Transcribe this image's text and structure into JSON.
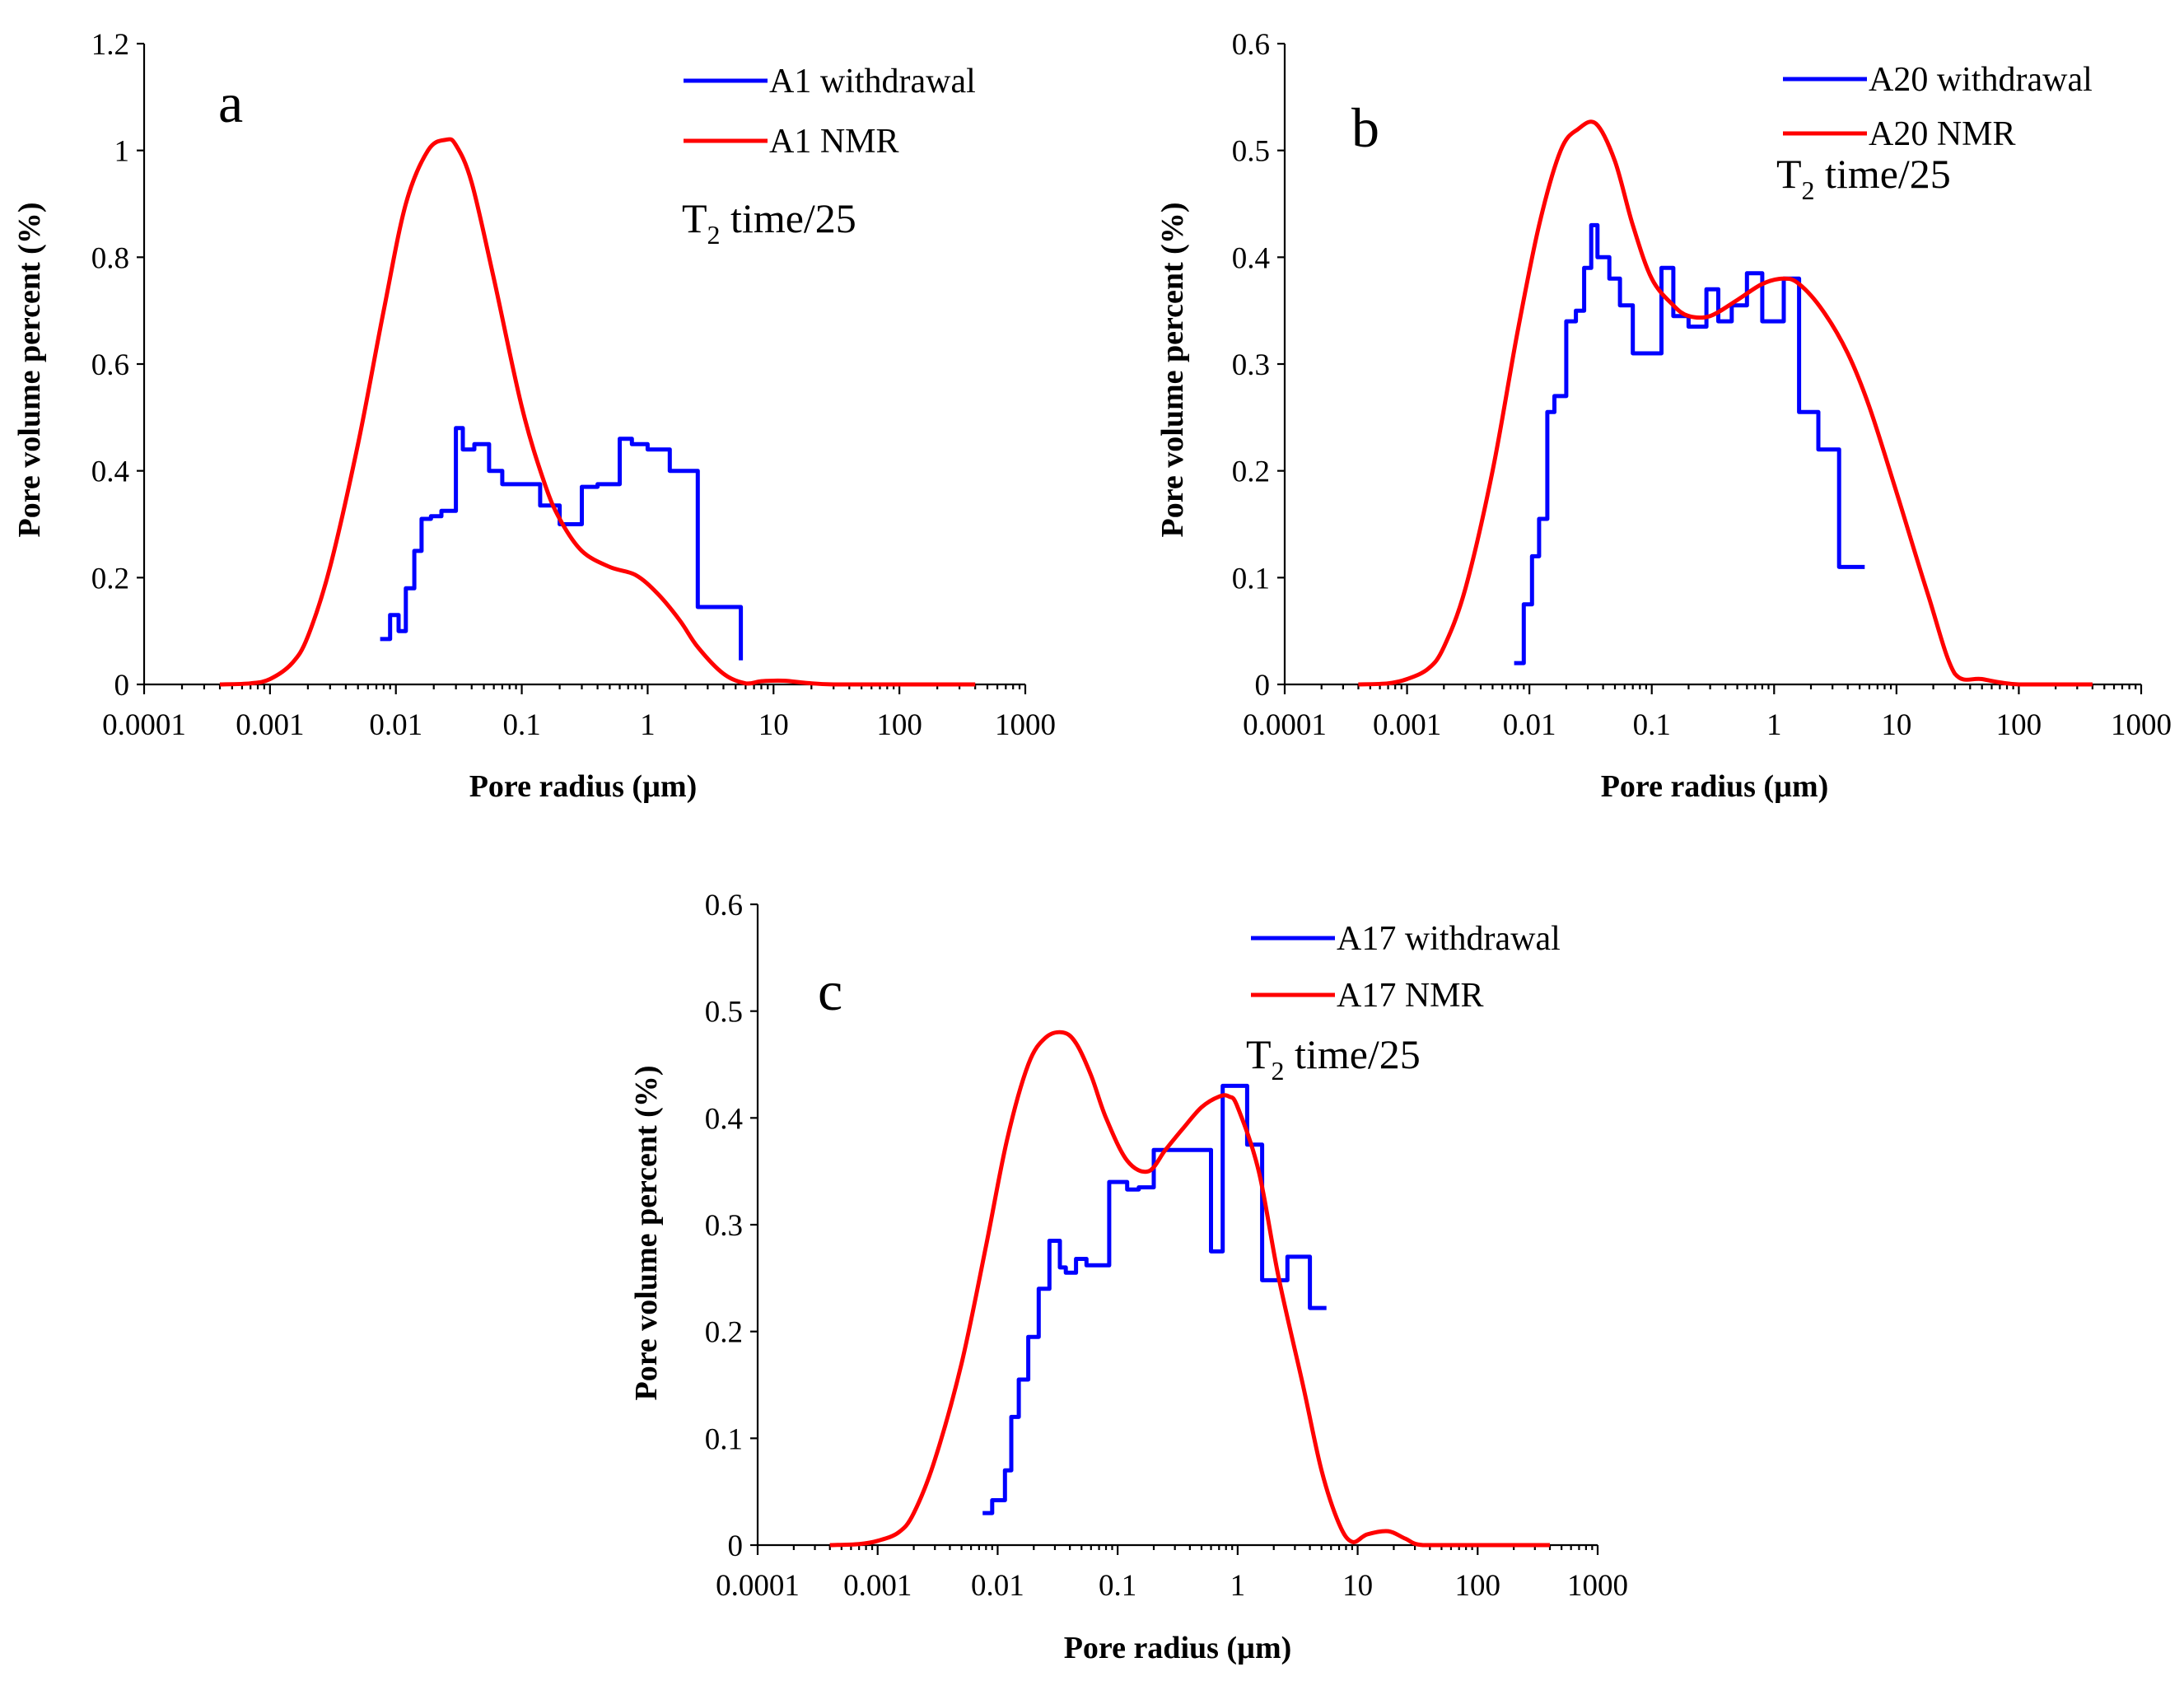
{
  "chart_data": [
    {
      "panel": "a",
      "type": "line",
      "xscale": "log",
      "xlabel": "Pore radius  (µm)",
      "ylabel": "Pore volume percent  (%)",
      "xlim": [
        0.0001,
        1000
      ],
      "ylim": [
        0,
        1.2
      ],
      "xticks": [
        "0.0001",
        "0.001",
        "0.01",
        "0.1",
        "1",
        "10",
        "100",
        "1000"
      ],
      "yticks": [
        "0",
        "0.2",
        "0.4",
        "0.6",
        "0.8",
        "1",
        "1.2"
      ],
      "annotation": {
        "main": "T",
        "sub": "2",
        "rest": " time/25"
      },
      "series": [
        {
          "name": "A1 withdrawal",
          "color": "#0000ff",
          "step": true,
          "x": [
            0.0075,
            0.009,
            0.0105,
            0.012,
            0.014,
            0.016,
            0.019,
            0.023,
            0.03,
            0.034,
            0.042,
            0.055,
            0.07,
            0.1,
            0.14,
            0.2,
            0.3,
            0.4,
            0.6,
            0.75,
            1.0,
            1.5,
            2.5,
            5.5
          ],
          "values": [
            0.085,
            0.13,
            0.1,
            0.18,
            0.25,
            0.31,
            0.315,
            0.325,
            0.48,
            0.44,
            0.45,
            0.4,
            0.375,
            0.375,
            0.335,
            0.3,
            0.37,
            0.375,
            0.46,
            0.45,
            0.44,
            0.4,
            0.145,
            0.045
          ]
        },
        {
          "name": "A1 NMR",
          "color": "#ff0000",
          "step": false,
          "x": [
            0.0004,
            0.0007,
            0.001,
            0.0015,
            0.002,
            0.003,
            0.005,
            0.008,
            0.012,
            0.018,
            0.025,
            0.03,
            0.04,
            0.06,
            0.1,
            0.15,
            0.2,
            0.3,
            0.5,
            0.8,
            1.2,
            1.8,
            2.5,
            4,
            6,
            8,
            12,
            18,
            30,
            100,
            400
          ],
          "values": [
            0,
            0.002,
            0.01,
            0.04,
            0.09,
            0.22,
            0.45,
            0.7,
            0.9,
            1.0,
            1.02,
            1.01,
            0.94,
            0.76,
            0.52,
            0.38,
            0.31,
            0.25,
            0.22,
            0.205,
            0.17,
            0.12,
            0.07,
            0.02,
            0.002,
            0.006,
            0.007,
            0.003,
            0,
            0,
            0
          ]
        }
      ]
    },
    {
      "panel": "b",
      "type": "line",
      "xscale": "log",
      "xlabel": "Pore radius  (µm)",
      "ylabel": "Pore volume percent  (%)",
      "xlim": [
        0.0001,
        1000
      ],
      "ylim": [
        0,
        0.6
      ],
      "xticks": [
        "0.0001",
        "0.001",
        "0.01",
        "0.1",
        "1",
        "10",
        "100",
        "1000"
      ],
      "yticks": [
        "0",
        "0.1",
        "0.2",
        "0.3",
        "0.4",
        "0.5",
        "0.6"
      ],
      "annotation": {
        "main": "T",
        "sub": "2",
        "rest": " time/25"
      },
      "series": [
        {
          "name": "A20 withdrawal",
          "color": "#0000ff",
          "step": true,
          "x": [
            0.0075,
            0.009,
            0.0105,
            0.012,
            0.014,
            0.016,
            0.02,
            0.024,
            0.028,
            0.032,
            0.036,
            0.045,
            0.055,
            0.07,
            0.09,
            0.12,
            0.15,
            0.2,
            0.28,
            0.35,
            0.45,
            0.6,
            0.8,
            1.2,
            1.6,
            2.3,
            3.4,
            5.5
          ],
          "values": [
            0.02,
            0.075,
            0.12,
            0.155,
            0.255,
            0.27,
            0.34,
            0.35,
            0.39,
            0.43,
            0.4,
            0.38,
            0.355,
            0.31,
            0.31,
            0.39,
            0.345,
            0.335,
            0.37,
            0.34,
            0.355,
            0.385,
            0.34,
            0.38,
            0.255,
            0.22,
            0.11,
            0.11
          ]
        },
        {
          "name": "A20 NMR",
          "color": "#ff0000",
          "step": false,
          "x": [
            0.0004,
            0.0007,
            0.001,
            0.0015,
            0.002,
            0.003,
            0.005,
            0.008,
            0.012,
            0.018,
            0.025,
            0.035,
            0.05,
            0.07,
            0.1,
            0.15,
            0.2,
            0.3,
            0.5,
            0.8,
            1.2,
            1.6,
            2.5,
            4,
            6,
            10,
            18,
            30,
            50,
            100,
            400
          ],
          "values": [
            0,
            0.001,
            0.005,
            0.015,
            0.035,
            0.09,
            0.2,
            0.33,
            0.43,
            0.5,
            0.52,
            0.525,
            0.49,
            0.43,
            0.38,
            0.355,
            0.345,
            0.345,
            0.36,
            0.375,
            0.38,
            0.375,
            0.35,
            0.31,
            0.26,
            0.18,
            0.085,
            0.01,
            0.005,
            0,
            0
          ]
        }
      ]
    },
    {
      "panel": "c",
      "type": "line",
      "xscale": "log",
      "xlabel": "Pore radius  (µm)",
      "ylabel": "Pore volume percent  (%)",
      "xlim": [
        0.0001,
        1000
      ],
      "ylim": [
        0,
        0.6
      ],
      "xticks": [
        "0.0001",
        "0.001",
        "0.01",
        "0.1",
        "1",
        "10",
        "100",
        "1000"
      ],
      "yticks": [
        "0",
        "0.1",
        "0.2",
        "0.3",
        "0.4",
        "0.5",
        "0.6"
      ],
      "annotation": {
        "main": "T",
        "sub": "2",
        "rest": " time/25"
      },
      "series": [
        {
          "name": "A17 withdrawal",
          "color": "#0000ff",
          "step": true,
          "x": [
            0.0075,
            0.009,
            0.0115,
            0.013,
            0.015,
            0.018,
            0.022,
            0.027,
            0.033,
            0.037,
            0.045,
            0.055,
            0.065,
            0.085,
            0.12,
            0.15,
            0.2,
            0.3,
            0.6,
            0.75,
            0.8,
            1.2,
            1.6,
            2.6,
            4.0,
            5.5
          ],
          "values": [
            0.03,
            0.042,
            0.07,
            0.12,
            0.155,
            0.195,
            0.24,
            0.285,
            0.26,
            0.255,
            0.268,
            0.262,
            0.262,
            0.34,
            0.333,
            0.335,
            0.37,
            0.37,
            0.275,
            0.43,
            0.43,
            0.375,
            0.248,
            0.27,
            0.222,
            0.222
          ]
        },
        {
          "name": "A17 NMR",
          "color": "#ff0000",
          "step": false,
          "x": [
            0.0004,
            0.0007,
            0.001,
            0.0015,
            0.002,
            0.003,
            0.005,
            0.008,
            0.012,
            0.018,
            0.025,
            0.035,
            0.045,
            0.06,
            0.08,
            0.12,
            0.18,
            0.25,
            0.35,
            0.5,
            0.7,
            0.85,
            1.0,
            1.5,
            2.2,
            3.5,
            5,
            7,
            9,
            12,
            18,
            25,
            35,
            100,
            400
          ],
          "values": [
            0,
            0.001,
            0.004,
            0.012,
            0.03,
            0.08,
            0.17,
            0.28,
            0.38,
            0.45,
            0.475,
            0.48,
            0.47,
            0.44,
            0.4,
            0.36,
            0.35,
            0.37,
            0.39,
            0.41,
            0.42,
            0.42,
            0.41,
            0.35,
            0.25,
            0.15,
            0.07,
            0.02,
            0.003,
            0.01,
            0.013,
            0.006,
            0,
            0,
            0
          ]
        }
      ]
    }
  ]
}
